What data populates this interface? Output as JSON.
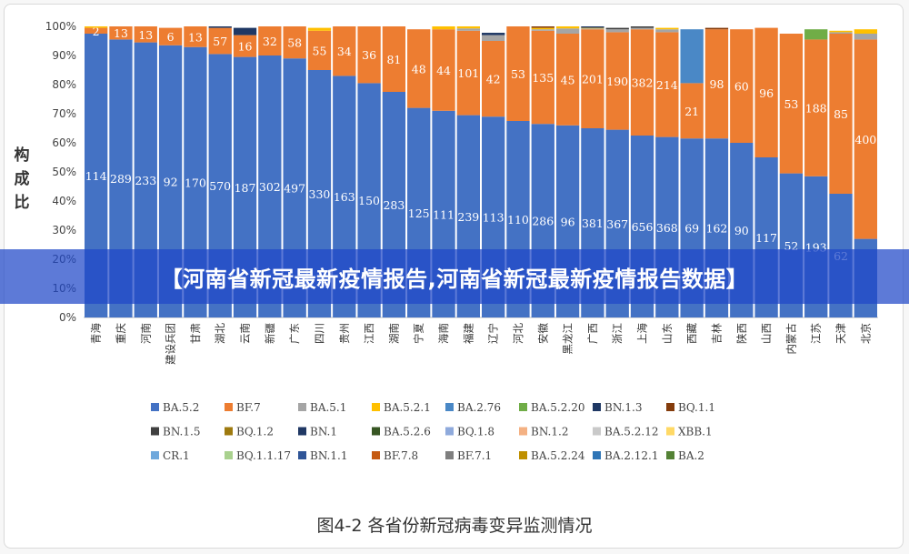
{
  "banner": {
    "text": "【河南省新冠最新疫情报告,河南省新冠最新疫情报告数据】"
  },
  "caption": "图4-2 各省份新冠病毒变异监测情况",
  "chart_data": {
    "type": "bar",
    "stacked": "percent",
    "ylabel": "构成比",
    "yticks": [
      "0%",
      "10%",
      "20%",
      "30%",
      "40%",
      "50%",
      "60%",
      "70%",
      "80%",
      "90%",
      "100%"
    ],
    "ylim": [
      0,
      100
    ],
    "grid": false,
    "legend_position": "bottom",
    "categories": [
      "青海",
      "重庆",
      "河南",
      "建设兵团",
      "甘肃",
      "湖北",
      "云南",
      "新疆",
      "广东",
      "四川",
      "贵州",
      "江西",
      "湖南",
      "宁夏",
      "海南",
      "福建",
      "辽宁",
      "河北",
      "安徽",
      "黑龙江",
      "广西",
      "浙江",
      "上海",
      "山东",
      "西藏",
      "吉林",
      "陕西",
      "山西",
      "内蒙古",
      "江苏",
      "天津",
      "北京"
    ],
    "series": [
      {
        "name": "BA.5.2",
        "color": "#4472c4",
        "values": [
          97.5,
          95.5,
          94.5,
          93.5,
          92.9,
          90.5,
          89.5,
          90.0,
          89.0,
          85.0,
          83.0,
          80.5,
          77.5,
          72.0,
          71.0,
          69.5,
          69.0,
          67.5,
          66.5,
          66.0,
          65.0,
          64.5,
          62.5,
          62.0,
          61.5,
          61.5,
          60.0,
          55.0,
          49.5,
          48.5,
          42.5,
          27.0
        ],
        "labels": [
          "114",
          "289",
          "233",
          "92",
          "170",
          "570",
          "187",
          "302",
          "497",
          "330",
          "163",
          "150",
          "283",
          "125",
          "111",
          "239",
          "113",
          "110",
          "286",
          "96",
          "381",
          "367",
          "656",
          "368",
          "69",
          "162",
          "90",
          "117",
          "52",
          "193",
          "62",
          ""
        ]
      },
      {
        "name": "BF.7",
        "color": "#ed7d31",
        "values": [
          2.0,
          4.5,
          5.5,
          6.0,
          7.1,
          9.0,
          7.5,
          10.0,
          11.0,
          13.5,
          17.0,
          19.5,
          22.5,
          27.0,
          28.0,
          29.0,
          26.0,
          32.5,
          32.0,
          31.5,
          34.0,
          33.5,
          36.5,
          36.0,
          19.0,
          37.5,
          39.0,
          44.5,
          48.0,
          47.0,
          55.0,
          68.5
        ],
        "labels": [
          "2",
          "13",
          "13",
          "6",
          "13",
          "57",
          "16",
          "32",
          "58",
          "55",
          "34",
          "36",
          "81",
          "48",
          "44",
          "101",
          "42",
          "53",
          "135",
          "45",
          "201",
          "190",
          "382",
          "214",
          "21",
          "98",
          "60",
          "96",
          "53",
          "188",
          "85",
          "400"
        ]
      },
      {
        "name": "BA.5.1",
        "color": "#a5a5a5",
        "values": [
          0,
          0,
          0,
          0,
          0,
          0,
          0,
          0,
          0,
          0,
          0,
          0,
          0,
          0,
          0,
          0.8,
          2.0,
          0,
          0.5,
          1.8,
          0.3,
          1.0,
          0.5,
          1.0,
          0,
          0,
          0,
          0,
          0,
          0,
          0.5,
          2.0
        ]
      },
      {
        "name": "BA.5.2.1",
        "color": "#ffc000",
        "values": [
          0.5,
          0,
          0,
          0,
          0,
          0,
          0,
          0,
          0,
          1.0,
          0,
          0,
          0,
          0,
          1.0,
          0.7,
          0,
          0,
          0.5,
          0.7,
          0.2,
          0,
          0,
          0.5,
          0,
          0,
          0,
          0,
          0,
          0,
          0.5,
          1.5
        ]
      },
      {
        "name": "BA.2.76",
        "color": "#4a88c6",
        "values": [
          0,
          0,
          0,
          0,
          0,
          0,
          0,
          0,
          0,
          0,
          0,
          0,
          0,
          0,
          0,
          0,
          0,
          0,
          0,
          0,
          0,
          0,
          0,
          0,
          18.5,
          0,
          0,
          0,
          0,
          0,
          0,
          0
        ]
      },
      {
        "name": "BA.5.2.20",
        "color": "#70ad47",
        "values": [
          0,
          0,
          0,
          0,
          0,
          0,
          0,
          0,
          0,
          0,
          0,
          0,
          0,
          0,
          0,
          0,
          0,
          0,
          0,
          0,
          0,
          0,
          0,
          0,
          0,
          0,
          0,
          0,
          0,
          3.5,
          0,
          0
        ]
      },
      {
        "name": "BN.1.3",
        "color": "#1f3864",
        "values": [
          0,
          0,
          0,
          0,
          0,
          0.5,
          2.5,
          0,
          0,
          0,
          0,
          0,
          0,
          0,
          0,
          0,
          0.8,
          0,
          0,
          0,
          0.5,
          0,
          0,
          0,
          0,
          0,
          0,
          0,
          0,
          0,
          0,
          0
        ]
      },
      {
        "name": "BQ.1.1",
        "color": "#843c0c",
        "values": [
          0,
          0,
          0,
          0,
          0,
          0,
          0,
          0,
          0,
          0,
          0,
          0,
          0,
          0,
          0,
          0,
          0,
          0,
          0.5,
          0,
          0,
          0,
          0,
          0,
          0,
          0.5,
          0,
          0,
          0,
          0,
          0,
          0
        ]
      },
      {
        "name": "BN.1.5",
        "color": "#404040",
        "values": [
          0,
          0,
          0,
          0,
          0,
          0,
          0,
          0,
          0,
          0,
          0,
          0,
          0,
          0,
          0,
          0,
          0,
          0,
          0,
          0,
          0,
          0.5,
          0.5,
          0,
          0,
          0,
          0,
          0,
          0,
          0,
          0,
          0
        ]
      },
      {
        "name": "BQ.1.2",
        "color": "#9e7a0f",
        "values": [
          0,
          0,
          0,
          0,
          0,
          0,
          0,
          0,
          0,
          0,
          0,
          0,
          0,
          0,
          0,
          0,
          0,
          0,
          0,
          0,
          0,
          0,
          0,
          0,
          0,
          0,
          0,
          0,
          0,
          0,
          0,
          0
        ]
      },
      {
        "name": "BN.1",
        "color": "#203864",
        "values": [
          0,
          0,
          0,
          0,
          0,
          0,
          0,
          0,
          0,
          0,
          0,
          0,
          0,
          0,
          0,
          0,
          0,
          0,
          0,
          0,
          0,
          0,
          0,
          0,
          0,
          0,
          0,
          0,
          0,
          0,
          0,
          0
        ]
      },
      {
        "name": "BA.5.2.6",
        "color": "#375623",
        "values": [
          0,
          0,
          0,
          0,
          0,
          0,
          0,
          0,
          0,
          0,
          0,
          0,
          0,
          0,
          0,
          0,
          0,
          0,
          0,
          0,
          0,
          0,
          0,
          0,
          0,
          0,
          0,
          0,
          0,
          0,
          0,
          0
        ]
      },
      {
        "name": "BQ.1.8",
        "color": "#8faadc",
        "values": [
          0,
          0,
          0,
          0,
          0,
          0,
          0,
          0,
          0,
          0,
          0,
          0,
          0,
          0,
          0,
          0,
          0,
          0,
          0,
          0,
          0,
          0,
          0,
          0,
          0,
          0,
          0,
          0,
          0,
          0,
          0,
          0
        ]
      },
      {
        "name": "BN.1.2",
        "color": "#f4b183",
        "values": [
          0,
          0,
          0,
          0,
          0,
          0,
          0,
          0,
          0,
          0,
          0,
          0,
          0,
          0,
          0,
          0,
          0,
          0,
          0,
          0,
          0,
          0,
          0,
          0,
          0,
          0,
          0,
          0,
          0,
          0,
          0,
          0
        ]
      },
      {
        "name": "BA.5.2.12",
        "color": "#c9c9c9",
        "values": [
          0,
          0,
          0,
          0,
          0,
          0,
          0,
          0,
          0,
          0,
          0,
          0,
          0,
          0,
          0,
          0,
          0,
          0,
          0,
          0,
          0,
          0,
          0,
          0,
          0,
          0,
          0,
          0,
          0,
          0,
          0,
          0
        ]
      },
      {
        "name": "XBB.1",
        "color": "#ffd966",
        "values": [
          0,
          0,
          0,
          0,
          0,
          0,
          0,
          0,
          0,
          0,
          0,
          0,
          0,
          0,
          0,
          0,
          0,
          0,
          0,
          0,
          0,
          0,
          0,
          0,
          0,
          0,
          0,
          0,
          0,
          0,
          0,
          0
        ]
      },
      {
        "name": "CR.1",
        "color": "#6fa8dc",
        "values": [
          0,
          0,
          0,
          0,
          0,
          0,
          0,
          0,
          0,
          0,
          0,
          0,
          0,
          0,
          0,
          0,
          0,
          0,
          0,
          0,
          0,
          0,
          0,
          0,
          0,
          0,
          0,
          0,
          0,
          0,
          0,
          0
        ]
      },
      {
        "name": "BQ.1.1.17",
        "color": "#a9d18e",
        "values": [
          0,
          0,
          0,
          0,
          0,
          0,
          0,
          0,
          0,
          0,
          0,
          0,
          0,
          0,
          0,
          0,
          0,
          0,
          0,
          0,
          0,
          0,
          0,
          0,
          0,
          0,
          0,
          0,
          0,
          0,
          0,
          0
        ]
      },
      {
        "name": "BN.1.1",
        "color": "#2f5597",
        "values": [
          0,
          0,
          0,
          0,
          0,
          0,
          0,
          0,
          0,
          0,
          0,
          0,
          0,
          0,
          0,
          0,
          0,
          0,
          0,
          0,
          0,
          0,
          0,
          0,
          0,
          0,
          0,
          0,
          0,
          0,
          0,
          0
        ]
      },
      {
        "name": "BF.7.8",
        "color": "#c55a11",
        "values": [
          0,
          0,
          0,
          0,
          0,
          0,
          0,
          0,
          0,
          0,
          0,
          0,
          0,
          0,
          0,
          0,
          0,
          0,
          0,
          0,
          0,
          0,
          0,
          0,
          0,
          0,
          0,
          0,
          0,
          0,
          0,
          0
        ]
      },
      {
        "name": "BF.7.1",
        "color": "#7f7f7f",
        "values": [
          0,
          0,
          0,
          0,
          0,
          0,
          0,
          0,
          0,
          0,
          0,
          0,
          0,
          0,
          0,
          0,
          0,
          0,
          0,
          0,
          0,
          0,
          0,
          0,
          0,
          0,
          0,
          0,
          0,
          0,
          0,
          0
        ]
      },
      {
        "name": "BA.5.2.24",
        "color": "#bf9000",
        "values": [
          0,
          0,
          0,
          0,
          0,
          0,
          0,
          0,
          0,
          0,
          0,
          0,
          0,
          0,
          0,
          0,
          0,
          0,
          0,
          0,
          0,
          0,
          0,
          0,
          0,
          0,
          0,
          0,
          0,
          0,
          0,
          0
        ]
      },
      {
        "name": "BA.2.12.1",
        "color": "#2e75b6",
        "values": [
          0,
          0,
          0,
          0,
          0,
          0,
          0,
          0,
          0,
          0,
          0,
          0,
          0,
          0,
          0,
          0,
          0,
          0,
          0,
          0,
          0,
          0,
          0,
          0,
          0,
          0,
          0,
          0,
          0,
          0,
          0,
          0
        ]
      },
      {
        "name": "BA.2",
        "color": "#548235",
        "values": [
          0,
          0,
          0,
          0,
          0,
          0,
          0,
          0,
          0,
          0,
          0,
          0,
          0,
          0,
          0,
          0,
          0,
          0,
          0,
          0,
          0,
          0,
          0,
          0,
          0,
          0,
          0,
          0,
          0,
          0,
          0,
          0
        ]
      }
    ]
  }
}
